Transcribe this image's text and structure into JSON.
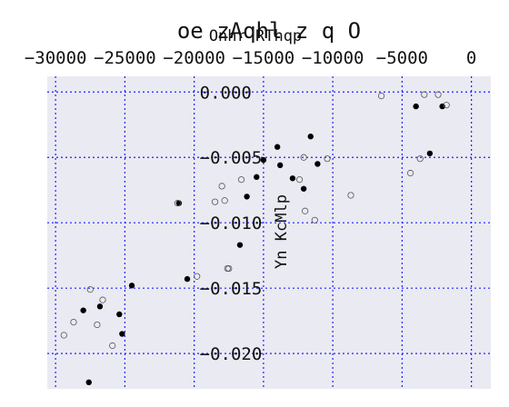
{
  "chart_data": {
    "type": "scatter",
    "title": "oe zAqhl z q O",
    "xlabel": "Onhr  RThqp",
    "ylabel": "Yn KcMlp",
    "xlim": [
      -30600,
      1400
    ],
    "ylim": [
      -0.0227,
      0.0012
    ],
    "x_ticks": [
      -30000,
      -25000,
      -20000,
      -15000,
      -10000,
      -5000,
      0
    ],
    "x_tick_labels": [
      "−30000",
      "−25000",
      "−20000",
      "−15000",
      "−10000",
      "−5000",
      "0"
    ],
    "y_ticks": [
      0.0,
      -0.005,
      -0.01,
      -0.015,
      -0.02
    ],
    "y_tick_labels": [
      "0.000",
      "−0.005",
      "−0.010",
      "−0.015",
      "−0.020"
    ],
    "x_axis_position": "top",
    "grid": true,
    "background": "#eaeaf2",
    "grid_color": "#1f1fff",
    "series": [
      {
        "marker": "filled",
        "color": "#000000",
        "x": [
          -2100,
          -28000,
          -27600,
          -26800,
          -25400,
          -25200,
          -24500,
          -21100,
          -20500,
          -16700,
          -16200,
          -15500,
          -15000,
          -14000,
          -13800,
          -12900,
          -12100,
          -11600,
          -11100,
          -4000,
          -3000
        ],
        "y": [
          -0.0011,
          -0.0167,
          -0.0222,
          -0.0164,
          -0.017,
          -0.0185,
          -0.0148,
          -0.0085,
          -0.0143,
          -0.0117,
          -0.008,
          -0.0065,
          -0.0052,
          -0.0042,
          -0.0056,
          -0.0066,
          -0.0074,
          -0.0034,
          -0.0055,
          -0.0011,
          -0.0047
        ]
      },
      {
        "marker": "hollow",
        "color": "#555555",
        "x": [
          -29400,
          -28700,
          -27500,
          -26600,
          -27000,
          -25900,
          -21200,
          -19800,
          -18000,
          -17800,
          -17600,
          -18500,
          -17500,
          -16600,
          -12100,
          -12400,
          -12000,
          -11300,
          -10400,
          -8700,
          -6500,
          -4400,
          -3700,
          -3400,
          -2400,
          -1800
        ],
        "y": [
          -0.0186,
          -0.0176,
          -0.0151,
          -0.0159,
          -0.0178,
          -0.0194,
          -0.0085,
          -0.0141,
          -0.0072,
          -0.0083,
          -0.0135,
          -0.0084,
          -0.0135,
          -0.0067,
          -0.005,
          -0.0067,
          -0.0091,
          -0.0098,
          -0.0051,
          -0.0079,
          -0.0003,
          -0.0062,
          -0.0051,
          -0.0002,
          -0.0002,
          -0.001
        ]
      }
    ]
  }
}
